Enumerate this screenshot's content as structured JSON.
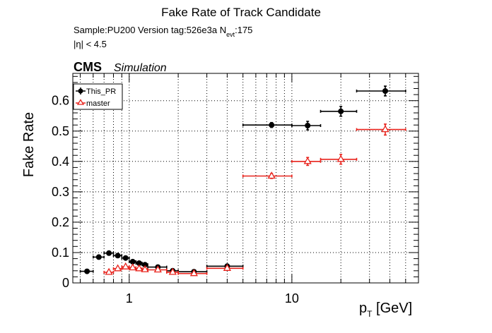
{
  "chart_data": {
    "type": "scatter",
    "title": "Fake Rate of Track Candidate",
    "info_line_1": {
      "text": "Sample:PU200   Version tag:526e3a  N",
      "sub": "evt",
      "suffix": ":175"
    },
    "info_line_2": "|η| < 4.5",
    "cms_label": "CMS",
    "simulation_label": "Simulation",
    "xlabel": {
      "main": "p",
      "sub": "T",
      "unit": " [GeV]"
    },
    "ylabel": "Fake Rate",
    "x_scale": "log",
    "xlim": [
      0.45,
      60
    ],
    "ylim": [
      0,
      0.69
    ],
    "x_ticks": [
      {
        "value": 1,
        "label": "1"
      },
      {
        "value": 10,
        "label": "10"
      }
    ],
    "y_ticks": [
      {
        "value": 0,
        "label": "0"
      },
      {
        "value": 0.1,
        "label": "0.1"
      },
      {
        "value": 0.2,
        "label": "0.2"
      },
      {
        "value": 0.3,
        "label": "0.3"
      },
      {
        "value": 0.4,
        "label": "0.4"
      },
      {
        "value": 0.5,
        "label": "0.5"
      },
      {
        "value": 0.6,
        "label": "0.6"
      }
    ],
    "grid": true,
    "legend_position": "top-left",
    "series": [
      {
        "name": "This_PR",
        "color": "#000000",
        "marker": "filled-circle",
        "points": [
          {
            "x": 0.55,
            "xlo": 0.5,
            "xhi": 0.6,
            "y": 0.038,
            "err": 0.004
          },
          {
            "x": 0.65,
            "xlo": 0.6,
            "xhi": 0.7,
            "y": 0.085,
            "err": 0.005
          },
          {
            "x": 0.75,
            "xlo": 0.7,
            "xhi": 0.8,
            "y": 0.098,
            "err": 0.005
          },
          {
            "x": 0.85,
            "xlo": 0.8,
            "xhi": 0.9,
            "y": 0.09,
            "err": 0.005
          },
          {
            "x": 0.95,
            "xlo": 0.9,
            "xhi": 1.0,
            "y": 0.082,
            "err": 0.005
          },
          {
            "x": 1.05,
            "xlo": 1.0,
            "xhi": 1.1,
            "y": 0.07,
            "err": 0.005
          },
          {
            "x": 1.15,
            "xlo": 1.1,
            "xhi": 1.2,
            "y": 0.065,
            "err": 0.005
          },
          {
            "x": 1.25,
            "xlo": 1.2,
            "xhi": 1.3,
            "y": 0.06,
            "err": 0.005
          },
          {
            "x": 1.5,
            "xlo": 1.3,
            "xhi": 1.7,
            "y": 0.052,
            "err": 0.004
          },
          {
            "x": 1.85,
            "xlo": 1.7,
            "xhi": 2.0,
            "y": 0.04,
            "err": 0.004
          },
          {
            "x": 2.5,
            "xlo": 2.0,
            "xhi": 3.0,
            "y": 0.037,
            "err": 0.004
          },
          {
            "x": 4.0,
            "xlo": 3.0,
            "xhi": 5.0,
            "y": 0.055,
            "err": 0.006
          },
          {
            "x": 7.5,
            "xlo": 5.0,
            "xhi": 10.0,
            "y": 0.52,
            "err": 0.008
          },
          {
            "x": 12.5,
            "xlo": 10.0,
            "xhi": 15.0,
            "y": 0.518,
            "err": 0.014
          },
          {
            "x": 20.0,
            "xlo": 15.0,
            "xhi": 25.0,
            "y": 0.565,
            "err": 0.016
          },
          {
            "x": 37.5,
            "xlo": 25.0,
            "xhi": 50.0,
            "y": 0.632,
            "err": 0.016
          }
        ]
      },
      {
        "name": "master",
        "color": "#e8231c",
        "marker": "open-triangle",
        "points": [
          {
            "x": 0.75,
            "xlo": 0.7,
            "xhi": 0.8,
            "y": 0.035,
            "err": 0.004
          },
          {
            "x": 0.85,
            "xlo": 0.8,
            "xhi": 0.9,
            "y": 0.047,
            "err": 0.004
          },
          {
            "x": 0.95,
            "xlo": 0.9,
            "xhi": 1.0,
            "y": 0.053,
            "err": 0.004
          },
          {
            "x": 1.05,
            "xlo": 1.0,
            "xhi": 1.1,
            "y": 0.05,
            "err": 0.004
          },
          {
            "x": 1.15,
            "xlo": 1.1,
            "xhi": 1.2,
            "y": 0.047,
            "err": 0.004
          },
          {
            "x": 1.25,
            "xlo": 1.2,
            "xhi": 1.3,
            "y": 0.044,
            "err": 0.004
          },
          {
            "x": 1.5,
            "xlo": 1.3,
            "xhi": 1.7,
            "y": 0.043,
            "err": 0.004
          },
          {
            "x": 1.85,
            "xlo": 1.7,
            "xhi": 2.0,
            "y": 0.035,
            "err": 0.004
          },
          {
            "x": 2.5,
            "xlo": 2.0,
            "xhi": 3.0,
            "y": 0.031,
            "err": 0.004
          },
          {
            "x": 4.0,
            "xlo": 3.0,
            "xhi": 5.0,
            "y": 0.048,
            "err": 0.005
          },
          {
            "x": 7.5,
            "xlo": 5.0,
            "xhi": 10.0,
            "y": 0.352,
            "err": 0.008
          },
          {
            "x": 12.5,
            "xlo": 10.0,
            "xhi": 15.0,
            "y": 0.4,
            "err": 0.013
          },
          {
            "x": 20.0,
            "xlo": 15.0,
            "xhi": 25.0,
            "y": 0.407,
            "err": 0.016
          },
          {
            "x": 37.5,
            "xlo": 25.0,
            "xhi": 50.0,
            "y": 0.505,
            "err": 0.018
          }
        ]
      }
    ]
  }
}
